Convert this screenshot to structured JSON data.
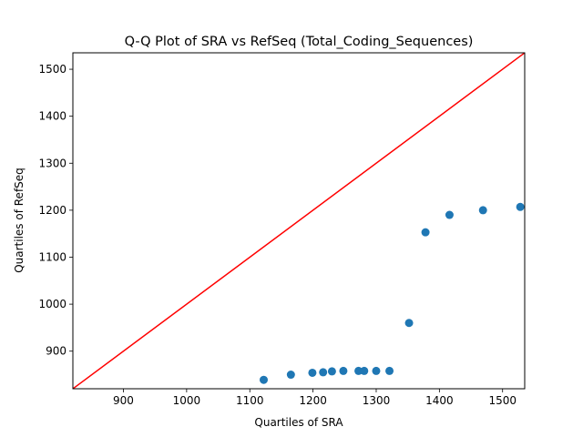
{
  "chart_data": {
    "type": "scatter",
    "title": "Q-Q Plot of SRA vs RefSeq (Total_Coding_Sequences)",
    "xlabel": "Quartiles of SRA",
    "ylabel": "Quartiles of RefSeq",
    "xlim": [
      820,
      1535
    ],
    "ylim": [
      820,
      1535
    ],
    "xticks": [
      900,
      1000,
      1100,
      1200,
      1300,
      1400,
      1500
    ],
    "yticks": [
      900,
      1000,
      1100,
      1200,
      1300,
      1400,
      1500
    ],
    "grid": false,
    "series": [
      {
        "points": [
          [
            1122,
            839
          ],
          [
            1165,
            850
          ],
          [
            1199,
            854
          ],
          [
            1216,
            855
          ],
          [
            1230,
            857
          ],
          [
            1248,
            858
          ],
          [
            1272,
            858
          ],
          [
            1281,
            858
          ],
          [
            1300,
            858
          ],
          [
            1321,
            858
          ],
          [
            1352,
            960
          ],
          [
            1378,
            1153
          ],
          [
            1416,
            1190
          ],
          [
            1469,
            1200
          ],
          [
            1528,
            1207
          ]
        ],
        "color": "#1f77b4"
      }
    ],
    "reference_line": {
      "from": [
        820,
        820
      ],
      "to": [
        1535,
        1535
      ],
      "color": "#ff0000"
    }
  }
}
